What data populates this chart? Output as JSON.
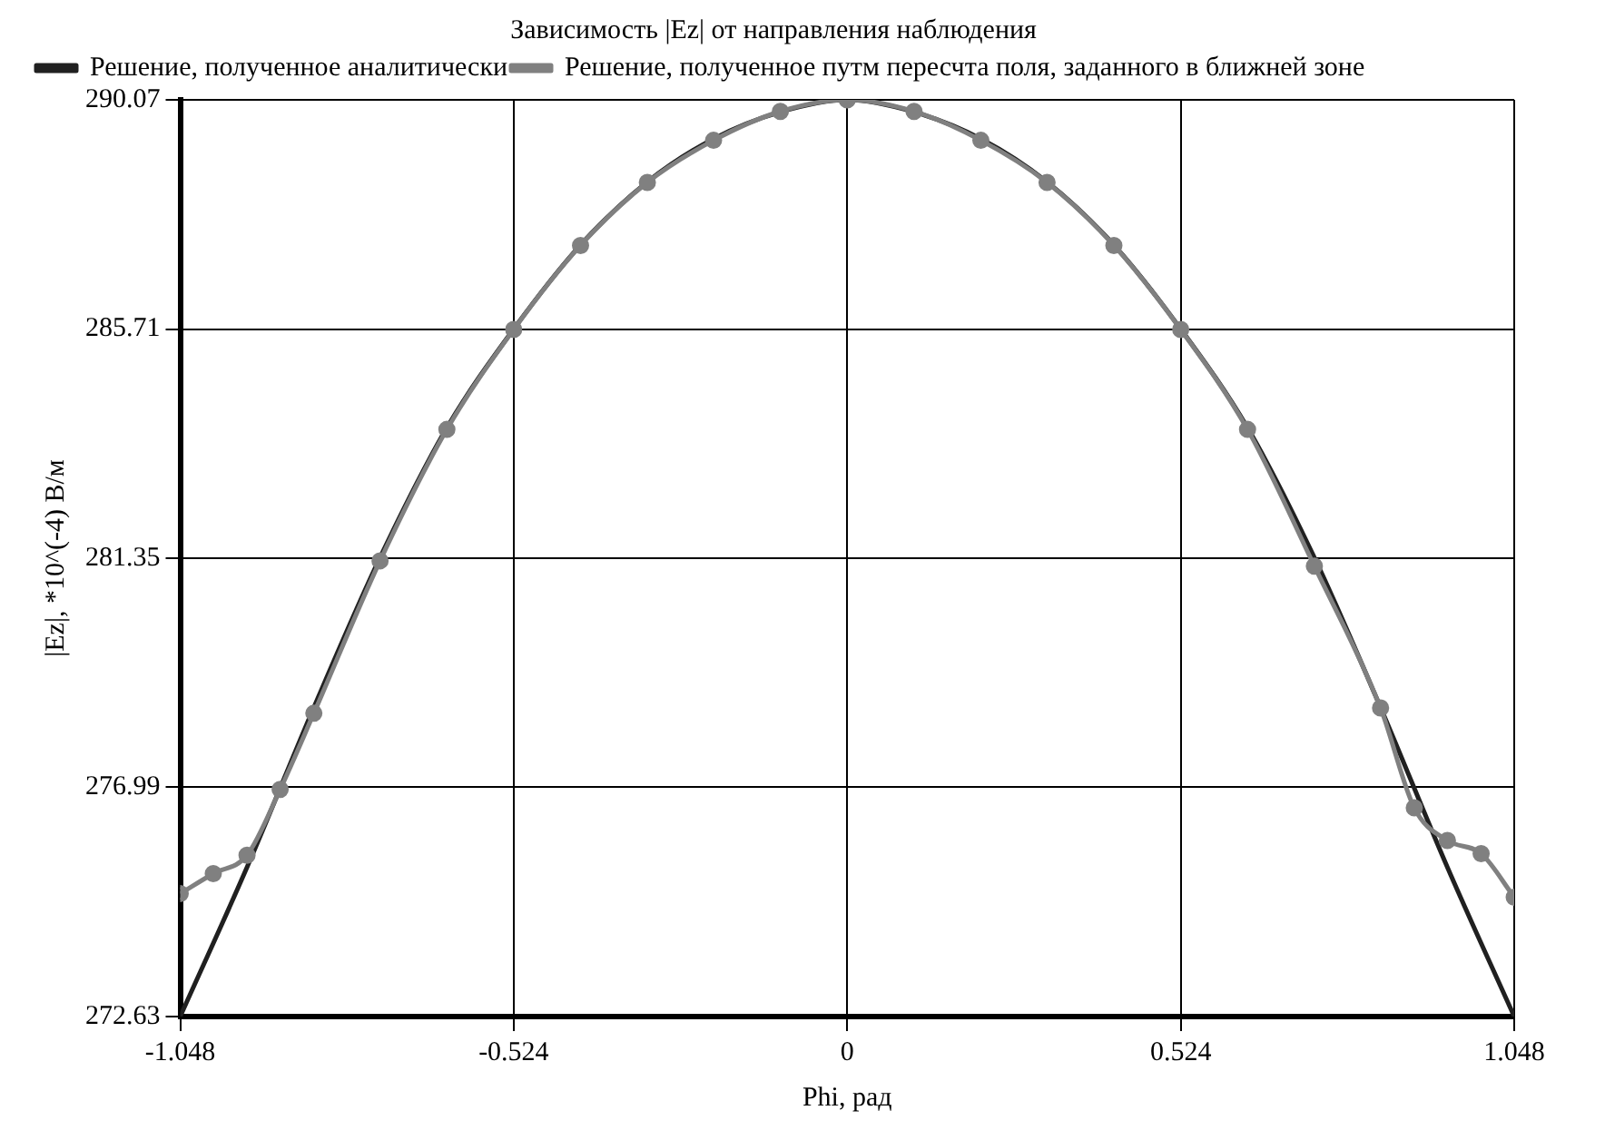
{
  "chart_data": {
    "type": "line",
    "title": "Зависимость |Ez| от направления наблюдения",
    "xlabel": "Phi, рад",
    "ylabel": "|Ez|, *10^(-4) В/м",
    "xlim": [
      -1.048,
      1.048
    ],
    "xticks": [
      -1.048,
      -0.524,
      0,
      0.524,
      1.048
    ],
    "ylim": [
      272.63,
      290.07
    ],
    "yticks": [
      272.63,
      276.99,
      281.35,
      285.71,
      290.07
    ],
    "grid": true,
    "legend": "top left",
    "marker": "circle",
    "series": [
      {
        "name": "Решение, полученное аналитически",
        "color": "#202020",
        "marker": "none",
        "x": [
          -1.048,
          -0.943,
          -0.838,
          -0.734,
          -0.629,
          -0.524,
          -0.419,
          -0.314,
          -0.21,
          -0.105,
          0,
          0.105,
          0.21,
          0.314,
          0.419,
          0.524,
          0.629,
          0.734,
          0.838,
          0.943,
          1.048
        ],
        "values": [
          272.63,
          275.47,
          278.51,
          281.36,
          283.83,
          285.71,
          287.31,
          288.51,
          289.33,
          289.84,
          290.07,
          289.84,
          289.33,
          288.51,
          287.31,
          285.71,
          283.83,
          281.36,
          278.51,
          275.47,
          272.63
        ]
      },
      {
        "name": "Решение, полученное путм пересчта поля, заданного в ближней зоне",
        "color": "#808080",
        "x": [
          -1.048,
          -0.996,
          -0.943,
          -0.891,
          -0.838,
          -0.734,
          -0.629,
          -0.524,
          -0.419,
          -0.314,
          -0.21,
          -0.105,
          0,
          0.105,
          0.21,
          0.314,
          0.419,
          0.524,
          0.629,
          0.734,
          0.838,
          0.891,
          0.943,
          0.996,
          1.048
        ],
        "values": [
          274.97,
          275.35,
          275.7,
          276.95,
          278.4,
          281.3,
          283.8,
          285.7,
          287.3,
          288.5,
          289.3,
          289.85,
          290.07,
          289.85,
          289.3,
          288.5,
          287.3,
          285.7,
          283.8,
          281.2,
          278.5,
          276.6,
          275.98,
          275.73,
          274.9
        ]
      }
    ]
  }
}
